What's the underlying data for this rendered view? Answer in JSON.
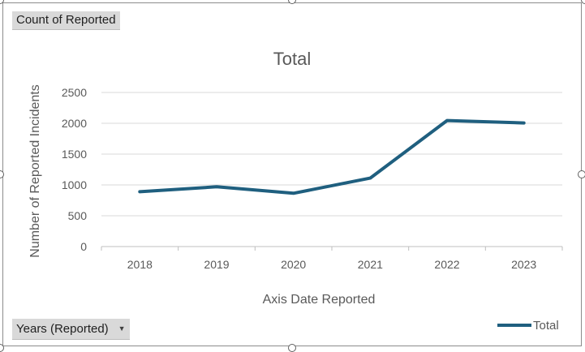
{
  "field_buttons": {
    "values_label": "Count of Reported",
    "axis_label": "Years (Reported)"
  },
  "colors": {
    "series": "#1f5f7f",
    "gridline": "#d9d9d9",
    "text": "#595959",
    "title": "#595959"
  },
  "chart_data": {
    "type": "line",
    "title": "Total",
    "xlabel": "Axis Date Reported",
    "ylabel": "Number of Reported Incidents",
    "categories": [
      "2018",
      "2019",
      "2020",
      "2021",
      "2022",
      "2023"
    ],
    "series": [
      {
        "name": "Total",
        "values": [
          890,
          970,
          865,
          1110,
          2045,
          2005
        ]
      }
    ],
    "ylim": [
      0,
      2500
    ],
    "yticks": [
      0,
      500,
      1000,
      1500,
      2000,
      2500
    ],
    "grid": true,
    "legend": "bottom-right"
  }
}
